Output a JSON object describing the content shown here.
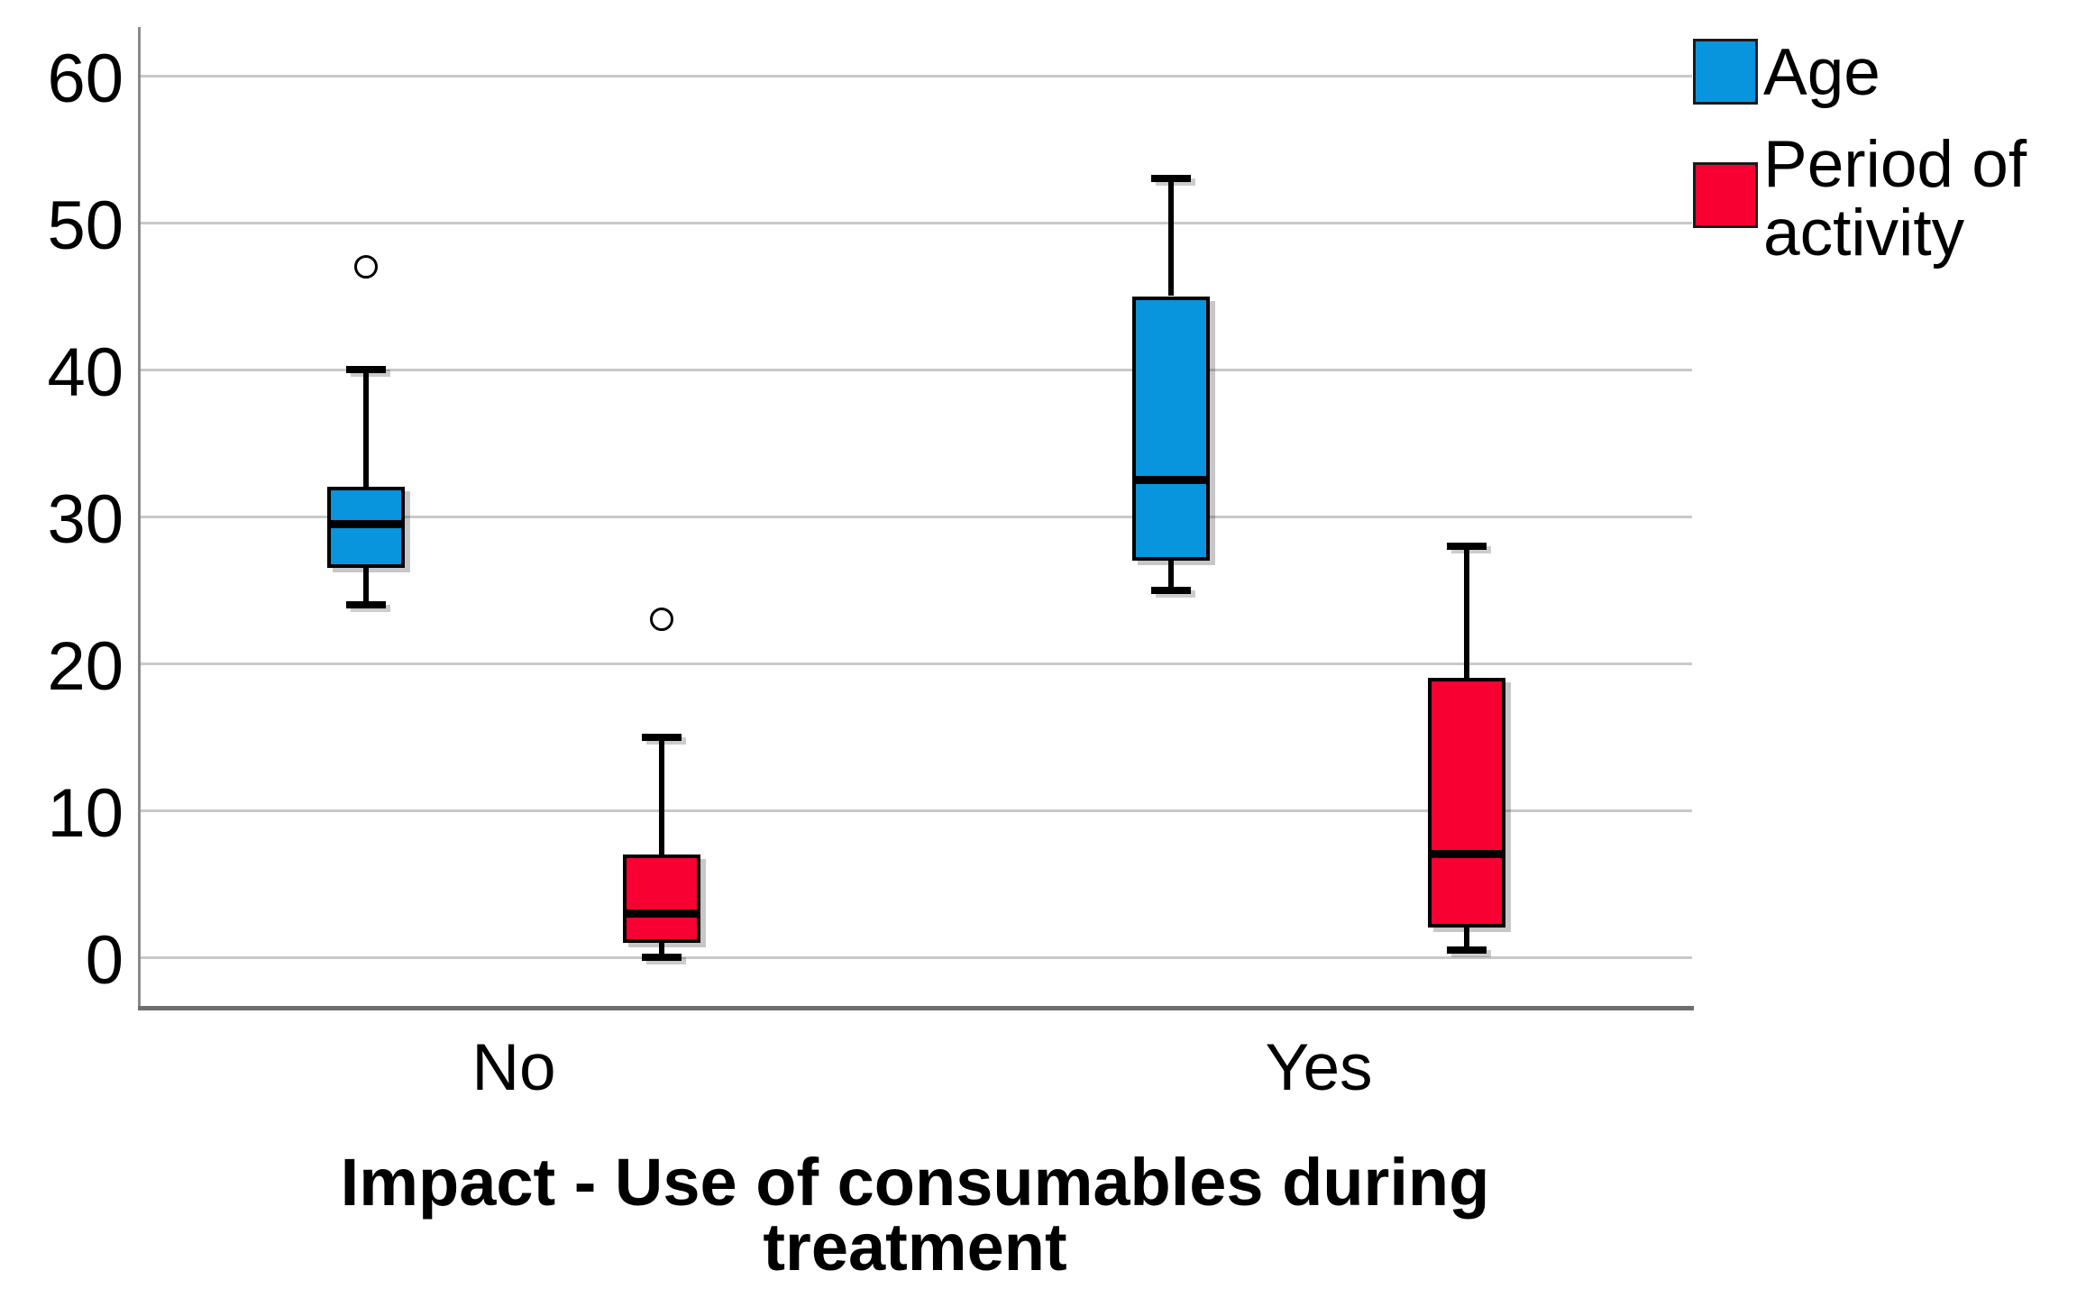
{
  "chart_data": {
    "type": "boxplot",
    "title": "",
    "xlabel": "Impact - Use of consumables during treatment",
    "xlabel_lines": [
      "Impact - Use of consumables during",
      "treatment"
    ],
    "ylabel": "",
    "categories": [
      "No",
      "Yes"
    ],
    "y_axis": {
      "ticks": [
        0,
        10,
        20,
        30,
        40,
        50,
        60
      ],
      "range": [
        -3,
        63
      ],
      "grid": true
    },
    "legend_position": "top-right",
    "series": [
      {
        "name": "Age",
        "legend_lines": [
          "Age"
        ],
        "color": "#0994DE",
        "boxes": [
          {
            "category": "No",
            "min": 24,
            "q1": 26.5,
            "median": 29.5,
            "q3": 32,
            "max": 40,
            "outliers": [
              47
            ]
          },
          {
            "category": "Yes",
            "min": 25,
            "q1": 27,
            "median": 32.5,
            "q3": 45,
            "max": 53,
            "outliers": []
          }
        ]
      },
      {
        "name": "Period of activity",
        "legend_lines": [
          "Period of",
          "activity"
        ],
        "color": "#F90032",
        "boxes": [
          {
            "category": "No",
            "min": 0,
            "q1": 1,
            "median": 3,
            "q3": 7,
            "max": 15,
            "outliers": [
              23
            ]
          },
          {
            "category": "Yes",
            "min": 0.5,
            "q1": 2,
            "median": 7,
            "q3": 19,
            "max": 28,
            "outliers": []
          }
        ]
      }
    ]
  }
}
